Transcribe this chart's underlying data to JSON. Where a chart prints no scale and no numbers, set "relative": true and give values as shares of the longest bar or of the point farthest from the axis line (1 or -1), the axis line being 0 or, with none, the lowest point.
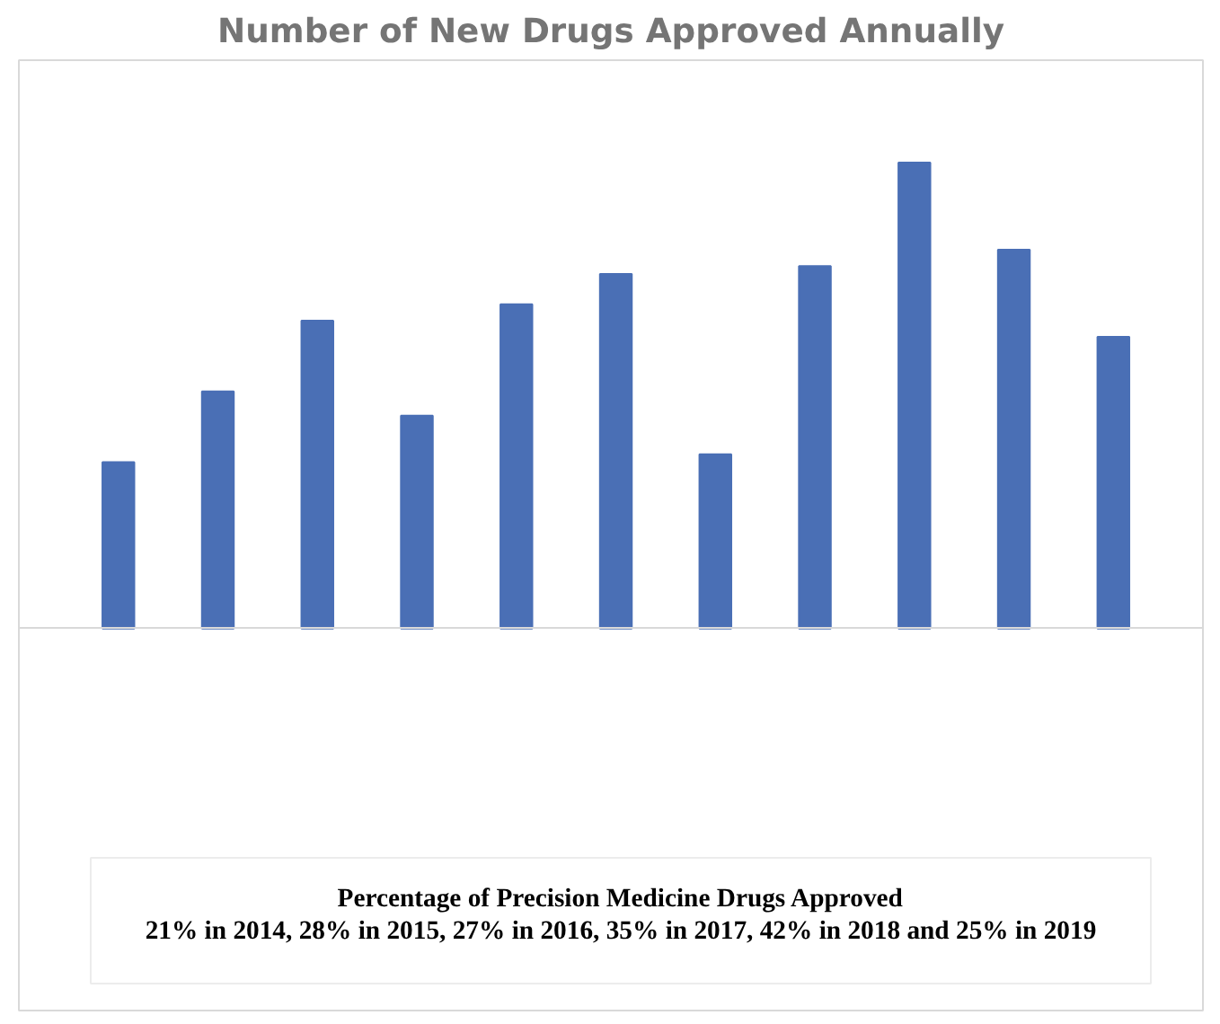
{
  "chart_data": {
    "type": "bar",
    "title": "Number of New Drugs Approved Annually",
    "relative": true,
    "categories": [
      null,
      null,
      null,
      null,
      null,
      null,
      null,
      null,
      null,
      null,
      null
    ],
    "values": [
      0.357,
      0.509,
      0.661,
      0.457,
      0.696,
      0.761,
      0.374,
      0.778,
      1,
      0.813,
      0.626
    ],
    "color": "#4a6fb5",
    "annotations": [
      "Percentage of Precision Medicine Drugs Approved",
      "21% in 2014, 28% in 2015, 27% in 2016, 35% in 2017, 42% in 2018 and 25% in 2019"
    ]
  }
}
